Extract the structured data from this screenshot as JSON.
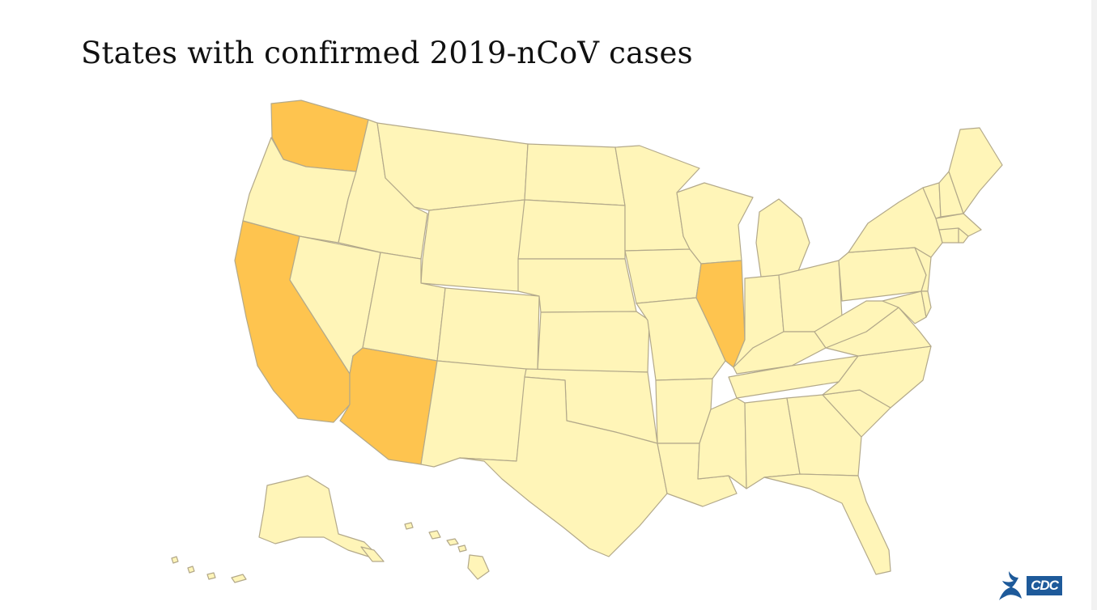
{
  "title": "States with confirmed 2019-nCoV cases",
  "colors": {
    "confirmed": "#fec44f",
    "not_confirmed": "#fff5b8",
    "border": "#b3a98a",
    "cdc_blue": "#1e5a9a"
  },
  "states_confirmed": [
    "Washington",
    "California",
    "Arizona",
    "Illinois"
  ],
  "logo": {
    "text": "CDC"
  }
}
